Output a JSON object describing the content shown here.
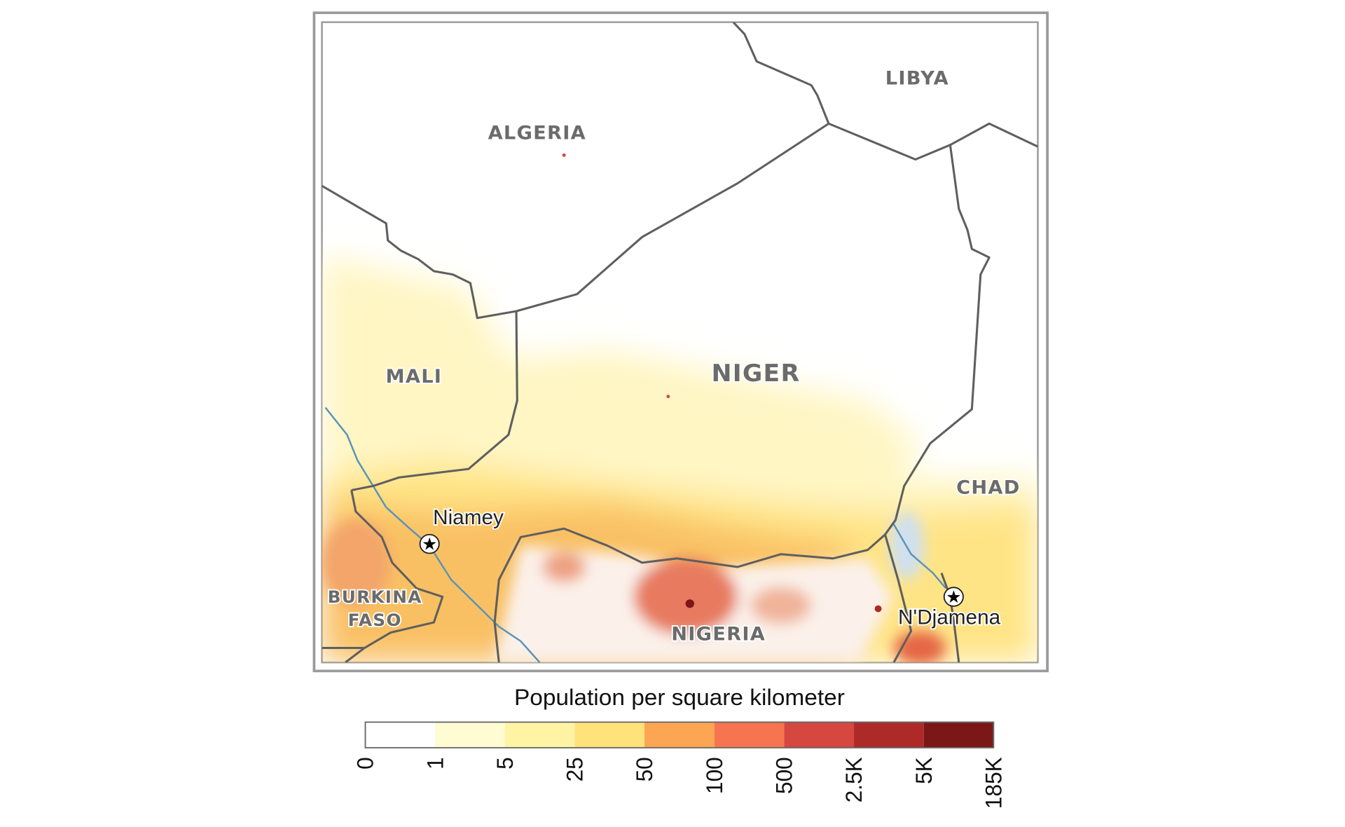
{
  "map": {
    "countries": [
      "ALGERIA",
      "LIBYA",
      "MALI",
      "NIGER",
      "CHAD",
      "BURKINA",
      "FASO",
      "NIGERIA"
    ],
    "cities": [
      "Niamey",
      "N'Djamena"
    ]
  },
  "legend": {
    "title": "Population per square kilometer",
    "ticks": [
      "0",
      "1",
      "5",
      "25",
      "50",
      "100",
      "500",
      "2.5K",
      "5K",
      "185K"
    ],
    "colors": [
      "#ffffff",
      "#fffbd2",
      "#fff4a4",
      "#ffe27a",
      "#fca552",
      "#f6744f",
      "#d6473f",
      "#ad2a29",
      "#7b1717"
    ]
  }
}
